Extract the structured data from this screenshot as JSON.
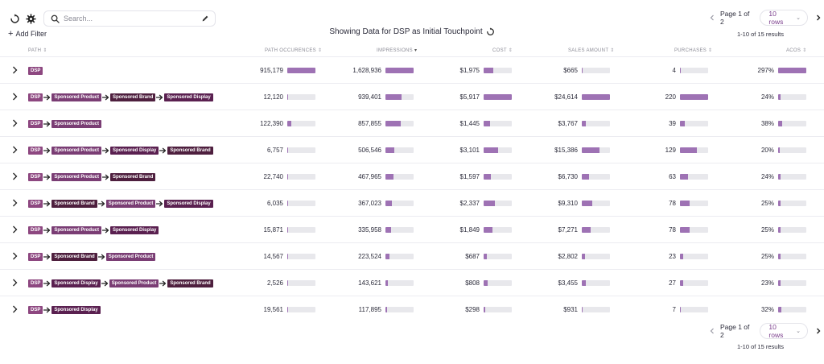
{
  "toolbar": {
    "search_placeholder": "Search...",
    "add_filter_label": "Add Filter",
    "add_filter_plus": "+"
  },
  "title": "Showing Data for DSP as Initial Touchpoint",
  "pagination": {
    "page_label": "Page 1 of 2",
    "rows_label": "10 rows",
    "results_label": "1-10 of 15 results"
  },
  "columns": [
    {
      "key": "path",
      "label": "PATH"
    },
    {
      "key": "path_occurrences",
      "label": "PATH OCCURENCES"
    },
    {
      "key": "impressions",
      "label": "IMPRESSIONS"
    },
    {
      "key": "cost",
      "label": "COST"
    },
    {
      "key": "sales_amount",
      "label": "SALES AMOUNT"
    },
    {
      "key": "purchases",
      "label": "PURCHASES"
    },
    {
      "key": "acos",
      "label": "ACOS"
    }
  ],
  "rows": [
    {
      "path": [
        "DSP"
      ],
      "path_occurrences": "915,179",
      "impressions": "1,628,936",
      "cost": "$1,975",
      "sales_amount": "$665",
      "purchases": "4",
      "acos": "297%",
      "fill": {
        "path_occurrences": 1.0,
        "impressions": 1.0,
        "cost": 0.33,
        "sales_amount": 0.03,
        "purchases": 0.02,
        "acos": 1.0
      }
    },
    {
      "path": [
        "DSP",
        "Sponsored Product",
        "Sponsored Brand",
        "Sponsored Display"
      ],
      "path_occurrences": "12,120",
      "impressions": "939,401",
      "cost": "$5,917",
      "sales_amount": "$24,614",
      "purchases": "220",
      "acos": "24%",
      "fill": {
        "path_occurrences": 0.01,
        "impressions": 0.58,
        "cost": 1.0,
        "sales_amount": 1.0,
        "purchases": 1.0,
        "acos": 0.08
      }
    },
    {
      "path": [
        "DSP",
        "Sponsored Product"
      ],
      "path_occurrences": "122,390",
      "impressions": "857,855",
      "cost": "$1,445",
      "sales_amount": "$3,767",
      "purchases": "39",
      "acos": "38%",
      "fill": {
        "path_occurrences": 0.13,
        "impressions": 0.53,
        "cost": 0.24,
        "sales_amount": 0.15,
        "purchases": 0.18,
        "acos": 0.13
      }
    },
    {
      "path": [
        "DSP",
        "Sponsored Product",
        "Sponsored Display",
        "Sponsored Brand"
      ],
      "path_occurrences": "6,757",
      "impressions": "506,546",
      "cost": "$3,101",
      "sales_amount": "$15,386",
      "purchases": "129",
      "acos": "20%",
      "fill": {
        "path_occurrences": 0.01,
        "impressions": 0.31,
        "cost": 0.52,
        "sales_amount": 0.63,
        "purchases": 0.59,
        "acos": 0.07
      }
    },
    {
      "path": [
        "DSP",
        "Sponsored Product",
        "Sponsored Brand"
      ],
      "path_occurrences": "22,740",
      "impressions": "467,965",
      "cost": "$1,597",
      "sales_amount": "$6,730",
      "purchases": "63",
      "acos": "24%",
      "fill": {
        "path_occurrences": 0.02,
        "impressions": 0.29,
        "cost": 0.27,
        "sales_amount": 0.27,
        "purchases": 0.29,
        "acos": 0.08
      }
    },
    {
      "path": [
        "DSP",
        "Sponsored Brand",
        "Sponsored Product",
        "Sponsored Display"
      ],
      "path_occurrences": "6,035",
      "impressions": "367,023",
      "cost": "$2,337",
      "sales_amount": "$9,310",
      "purchases": "78",
      "acos": "25%",
      "fill": {
        "path_occurrences": 0.01,
        "impressions": 0.23,
        "cost": 0.39,
        "sales_amount": 0.38,
        "purchases": 0.35,
        "acos": 0.08
      }
    },
    {
      "path": [
        "DSP",
        "Sponsored Product",
        "Sponsored Display"
      ],
      "path_occurrences": "15,871",
      "impressions": "335,958",
      "cost": "$1,849",
      "sales_amount": "$7,271",
      "purchases": "78",
      "acos": "25%",
      "fill": {
        "path_occurrences": 0.02,
        "impressions": 0.21,
        "cost": 0.31,
        "sales_amount": 0.3,
        "purchases": 0.35,
        "acos": 0.08
      }
    },
    {
      "path": [
        "DSP",
        "Sponsored Brand",
        "Sponsored Product"
      ],
      "path_occurrences": "14,567",
      "impressions": "223,524",
      "cost": "$687",
      "sales_amount": "$2,802",
      "purchases": "23",
      "acos": "25%",
      "fill": {
        "path_occurrences": 0.02,
        "impressions": 0.14,
        "cost": 0.12,
        "sales_amount": 0.11,
        "purchases": 0.1,
        "acos": 0.08
      }
    },
    {
      "path": [
        "DSP",
        "Sponsored Display",
        "Sponsored Product",
        "Sponsored Brand"
      ],
      "path_occurrences": "2,526",
      "impressions": "143,621",
      "cost": "$808",
      "sales_amount": "$3,455",
      "purchases": "27",
      "acos": "23%",
      "fill": {
        "path_occurrences": 0.01,
        "impressions": 0.09,
        "cost": 0.14,
        "sales_amount": 0.14,
        "purchases": 0.12,
        "acos": 0.08
      }
    },
    {
      "path": [
        "DSP",
        "Sponsored Display"
      ],
      "path_occurrences": "19,561",
      "impressions": "117,895",
      "cost": "$298",
      "sales_amount": "$931",
      "purchases": "7",
      "acos": "32%",
      "fill": {
        "path_occurrences": 0.02,
        "impressions": 0.07,
        "cost": 0.05,
        "sales_amount": 0.04,
        "purchases": 0.03,
        "acos": 0.11
      }
    }
  ],
  "colors": {
    "bar_fill": "#9e72b4",
    "bar_track": "#e8e8ec",
    "tag_dsp": "#8d4780",
    "tag_sponsored_product": "#7a3d74",
    "tag_sponsored_brand": "#4e1f3e",
    "tag_sponsored_display": "#5a2050",
    "accent": "#7a3d8c"
  },
  "icons": {
    "refresh": "refresh-icon",
    "settings": "gear-icon",
    "search": "search-icon",
    "edit": "pencil-icon",
    "prev": "chevron-left-icon",
    "next": "chevron-right-icon",
    "expand": "chevron-right-icon",
    "path_arrow": "arrow-right-icon"
  }
}
